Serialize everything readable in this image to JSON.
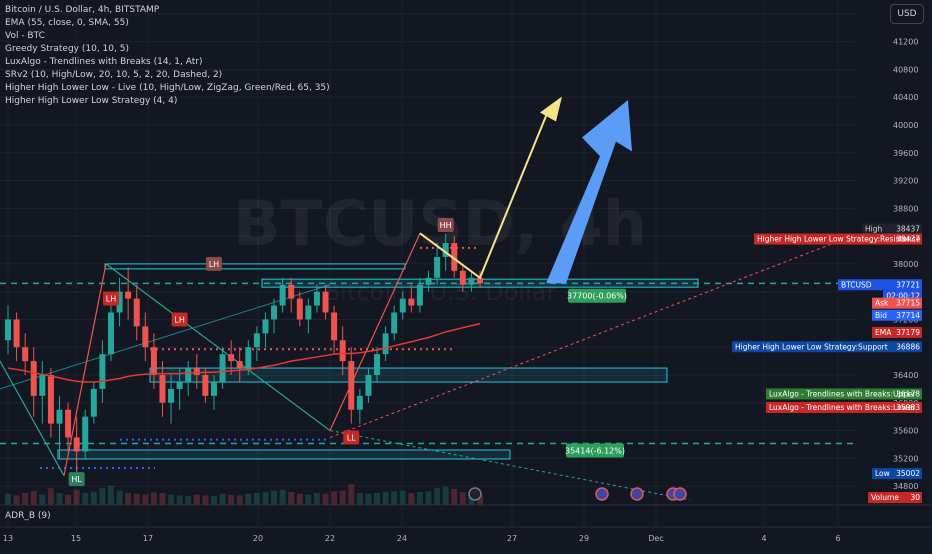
{
  "indicators": [
    "Bitcoin / U.S. Dollar, 4h, BITSTAMP",
    "EMA (55, close, 0, SMA, 55)",
    "Vol - BTC",
    "Greedy Strategy (10, 10, 5)",
    "LuxAlgo - Trendlines with Breaks (14, 1, Atr)",
    "SRv2 (10, High/Low, 20, 10, 5, 2, 20, Dashed, 2)",
    "Higher High Lower Low - Live (10, High/Low, ZigZag, Green/Red, 65, 35)",
    "Higher High Lower Low Strategy (4, 4)"
  ],
  "currency": "USD",
  "watermark": {
    "symbol": "BTCUSD",
    "interval": "4h",
    "name": "Bitcoin / U.S. Dollar"
  },
  "adr_label": "ADR_B (9)",
  "colors": {
    "background": "#131722",
    "grid": "#1e222d",
    "bull": "#26a69a",
    "bear": "#ef5350",
    "zone": "#26c6da",
    "ema": "#e53935",
    "arrow_yellow": "#f5e58a",
    "arrow_blue": "#5b9cf6",
    "support_blue": "#0d47a1"
  },
  "chart_data": {
    "type": "candlestick",
    "ylim": [
      34600,
      41800
    ],
    "y_ticks": [
      41600,
      41200,
      40800,
      40400,
      40000,
      39600,
      39200,
      38800,
      38400,
      38000,
      37600,
      37200,
      36800,
      36400,
      36000,
      35600,
      35200,
      34800
    ],
    "x_ticks": [
      "13",
      "15",
      "17",
      "20",
      "22",
      "24",
      "27",
      "29",
      "Dec",
      "4",
      "6"
    ],
    "candles": [
      [
        36900,
        37400,
        36700,
        37200
      ],
      [
        37200,
        37300,
        36600,
        36800
      ],
      [
        36800,
        37000,
        36400,
        36600
      ],
      [
        36600,
        36800,
        35800,
        36100
      ],
      [
        36100,
        36600,
        35700,
        36400
      ],
      [
        36400,
        36500,
        35500,
        35700
      ],
      [
        35700,
        36100,
        35200,
        35900
      ],
      [
        35900,
        36000,
        35300,
        35500
      ],
      [
        35500,
        35800,
        35000,
        35300
      ],
      [
        35300,
        35900,
        35200,
        35800
      ],
      [
        35800,
        36300,
        35700,
        36200
      ],
      [
        36200,
        36900,
        36000,
        36700
      ],
      [
        36700,
        37500,
        36600,
        37300
      ],
      [
        37300,
        37800,
        37100,
        37600
      ],
      [
        37600,
        37950,
        37200,
        37500
      ],
      [
        37500,
        37700,
        36900,
        37100
      ],
      [
        37100,
        37300,
        36600,
        36800
      ],
      [
        36800,
        37000,
        36200,
        36400
      ],
      [
        36400,
        36600,
        35800,
        36000
      ],
      [
        36000,
        36400,
        35700,
        36200
      ],
      [
        36200,
        36500,
        35900,
        36300
      ],
      [
        36300,
        36600,
        36100,
        36500
      ],
      [
        36500,
        36700,
        36200,
        36400
      ],
      [
        36400,
        36500,
        36000,
        36100
      ],
      [
        36100,
        36400,
        35900,
        36300
      ],
      [
        36300,
        36800,
        36200,
        36700
      ],
      [
        36700,
        36900,
        36400,
        36600
      ],
      [
        36600,
        36800,
        36300,
        36500
      ],
      [
        36500,
        36900,
        36400,
        36800
      ],
      [
        36800,
        37100,
        36600,
        37000
      ],
      [
        37000,
        37300,
        36800,
        37200
      ],
      [
        37200,
        37500,
        37000,
        37400
      ],
      [
        37400,
        37800,
        37300,
        37700
      ],
      [
        37700,
        37800,
        37300,
        37500
      ],
      [
        37500,
        37600,
        37100,
        37200
      ],
      [
        37200,
        37500,
        37000,
        37400
      ],
      [
        37400,
        37700,
        37300,
        37600
      ],
      [
        37600,
        37700,
        37200,
        37300
      ],
      [
        37300,
        37400,
        36700,
        36900
      ],
      [
        36900,
        37100,
        36400,
        36600
      ],
      [
        36600,
        36800,
        35700,
        35900
      ],
      [
        35900,
        36200,
        35700,
        36100
      ],
      [
        36100,
        36500,
        36000,
        36400
      ],
      [
        36400,
        36800,
        36300,
        36700
      ],
      [
        36700,
        37100,
        36600,
        37000
      ],
      [
        37000,
        37400,
        36900,
        37300
      ],
      [
        37300,
        37600,
        37200,
        37500
      ],
      [
        37500,
        37700,
        37300,
        37400
      ],
      [
        37400,
        37800,
        37300,
        37700
      ],
      [
        37700,
        37900,
        37600,
        37800
      ],
      [
        37800,
        38300,
        37700,
        38100
      ],
      [
        38100,
        38440,
        37900,
        38300
      ],
      [
        38300,
        38400,
        37800,
        37900
      ],
      [
        37900,
        38000,
        37600,
        37700
      ],
      [
        37700,
        37900,
        37600,
        37800
      ],
      [
        37800,
        37900,
        37650,
        37720
      ]
    ],
    "ema": [
      36500,
      36480,
      36460,
      36430,
      36410,
      36380,
      36360,
      36330,
      36310,
      36300,
      36300,
      36310,
      36330,
      36350,
      36380,
      36400,
      36410,
      36420,
      36420,
      36420,
      36420,
      36430,
      36430,
      36440,
      36440,
      36450,
      36460,
      36470,
      36480,
      36500,
      36520,
      36540,
      36570,
      36600,
      36620,
      36640,
      36660,
      36680,
      36700,
      36710,
      36710,
      36720,
      36740,
      36760,
      36790,
      36820,
      36850,
      36880,
      36910,
      36940,
      36980,
      37020,
      37050,
      37080,
      37110,
      37140
    ],
    "volume_max": 1000,
    "volumes": [
      280,
      240,
      300,
      350,
      260,
      420,
      300,
      260,
      380,
      300,
      330,
      420,
      480,
      360,
      300,
      280,
      260,
      320,
      300,
      260,
      240,
      220,
      260,
      240,
      230,
      280,
      250,
      240,
      280,
      300,
      320,
      360,
      380,
      320,
      280,
      260,
      300,
      280,
      340,
      360,
      520,
      300,
      280,
      300,
      320,
      340,
      360,
      300,
      320,
      340,
      420,
      460,
      400,
      320,
      280,
      240
    ],
    "markers": [
      {
        "label": "LH",
        "type": "bear",
        "x": 24,
        "y": 38000
      },
      {
        "label": "HL",
        "type": "bull",
        "x": 8,
        "y": 34900
      },
      {
        "label": "LH",
        "type": "bear",
        "x": 12,
        "y": 37500
      },
      {
        "label": "LH",
        "type": "bear",
        "x": 20,
        "y": 37200
      },
      {
        "label": "HH",
        "type": "bear",
        "x": 51,
        "y": 38560
      },
      {
        "label": "LL",
        "type": "bear",
        "x": 40,
        "y": 35500
      }
    ],
    "zones": [
      {
        "label": "37700(-0.06%)",
        "y": 37700,
        "x_start": 33,
        "x_end": 110
      },
      {
        "label": "35414(-6.12%)",
        "y": 35414,
        "x_start": 10,
        "x_end": 80
      }
    ],
    "price_tags": [
      {
        "label": "High",
        "value": "38437"
      },
      {
        "label": "Higher High Lower Low Strategy:Resistance",
        "value": "38437"
      },
      {
        "label": "BTCUSD",
        "value": "37721",
        "extra": "02:00:12"
      },
      {
        "label": "Ask",
        "value": "37715"
      },
      {
        "label": "Bid",
        "value": "37714"
      },
      {
        "label": "EMA",
        "value": "37179"
      },
      {
        "label": "Higher High Lower Low Strategy:Support",
        "value": "36886"
      },
      {
        "label": "LuxAlgo - Trendlines with Breaks:Upper",
        "value": "36178"
      },
      {
        "label": "LuxAlgo - Trendlines with Breaks:Lower",
        "value": "35983"
      },
      {
        "label": "Low",
        "value": "35002"
      },
      {
        "label": "Volume",
        "value": "30"
      }
    ]
  }
}
